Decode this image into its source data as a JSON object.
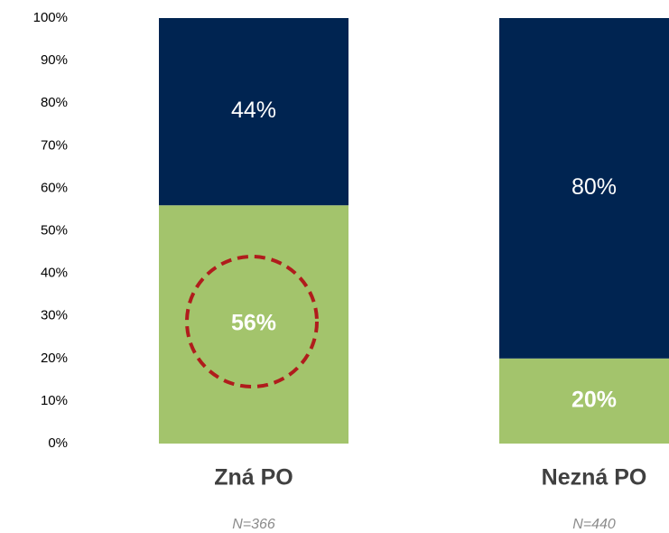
{
  "chart_data": {
    "type": "stacked_bar",
    "categories": [
      "Zná PO",
      "Nezná PO"
    ],
    "series": [
      {
        "color": "#a3c46c",
        "values": [
          56,
          20
        ],
        "value_labels": [
          "56%",
          "20%"
        ]
      },
      {
        "color": "#002451",
        "values": [
          44,
          80
        ],
        "value_labels": [
          "44%",
          "80%"
        ]
      }
    ],
    "annotations": [
      "N=366",
      "N=440"
    ],
    "ylim": [
      0,
      100
    ],
    "yticks": [
      {
        "value": 0,
        "label": "0%"
      },
      {
        "value": 10,
        "label": "10%"
      },
      {
        "value": 20,
        "label": "20%"
      },
      {
        "value": 30,
        "label": "30%"
      },
      {
        "value": 40,
        "label": "40%"
      },
      {
        "value": 50,
        "label": "50%"
      },
      {
        "value": 60,
        "label": "60%"
      },
      {
        "value": 70,
        "label": "70%"
      },
      {
        "value": 80,
        "label": "80%"
      },
      {
        "value": 90,
        "label": "90%"
      },
      {
        "value": 100,
        "label": "100%"
      }
    ]
  }
}
